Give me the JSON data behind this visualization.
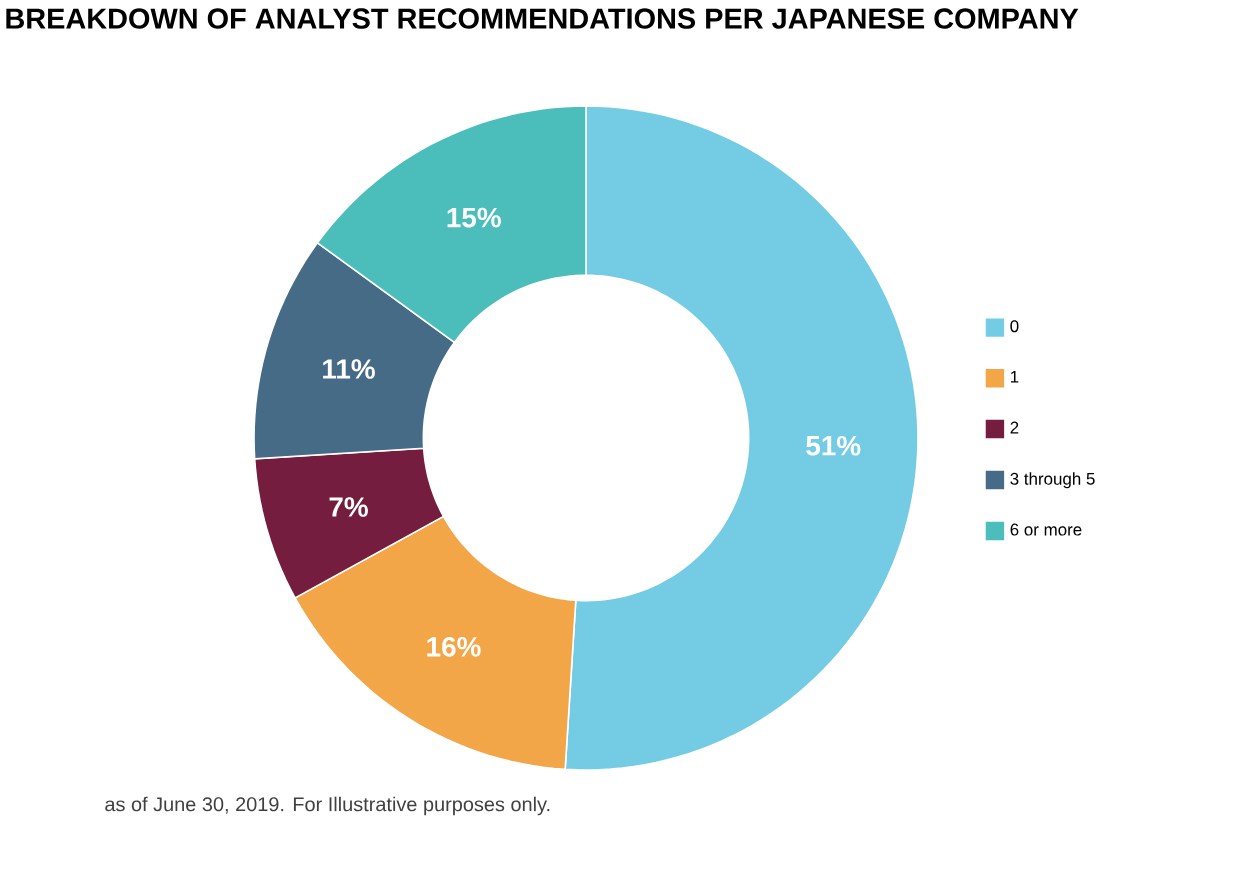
{
  "chart_data": {
    "type": "donut",
    "title": "BREAKDOWN OF ANALYST RECOMMENDATIONS PER JAPANESE COMPANY",
    "categories": [
      "0",
      "1",
      "2",
      "3 through 5",
      "6 or more"
    ],
    "values": [
      51,
      16,
      7,
      11,
      15
    ],
    "colors": [
      "#74cce4",
      "#f2a648",
      "#741d3e",
      "#456b87",
      "#4bbdbb"
    ],
    "value_labels": [
      "51%",
      "16%",
      "7%",
      "11%",
      "15%"
    ],
    "legend": "right",
    "annotations": [
      "as of June 30, 2019. For Illustrative purposes only."
    ]
  }
}
